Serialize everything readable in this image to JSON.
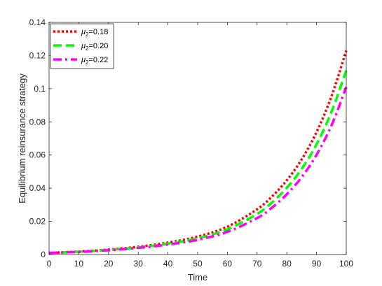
{
  "chart_data": {
    "type": "line",
    "title": "",
    "xlabel": "Time",
    "ylabel": "Equilibrium reinsurance strategy",
    "xlim": [
      0,
      100
    ],
    "ylim": [
      0,
      0.14
    ],
    "xticks": [
      "0",
      "10",
      "20",
      "30",
      "40",
      "50",
      "60",
      "70",
      "80",
      "90",
      "100"
    ],
    "yticks": [
      "0",
      "0.02",
      "0.04",
      "0.06",
      "0.08",
      "0.1",
      "0.12",
      "0.14"
    ],
    "grid": false,
    "legend_position": "top-left",
    "x": [
      0,
      10,
      20,
      30,
      40,
      50,
      60,
      70,
      75,
      80,
      85,
      90,
      95,
      100
    ],
    "series": [
      {
        "name_symbol": "μ",
        "name_sub": "2",
        "name_value": "=0.18",
        "color": "#ff0000",
        "style": "dotted",
        "values": [
          0.001,
          0.0018,
          0.003,
          0.0047,
          0.0072,
          0.0108,
          0.0168,
          0.0273,
          0.035,
          0.0448,
          0.0574,
          0.0738,
          0.0953,
          0.123
        ]
      },
      {
        "name_symbol": "μ",
        "name_sub": "2",
        "name_value": "=0.20",
        "color": "#00ff00",
        "style": "dashed",
        "values": [
          0.001,
          0.0017,
          0.0028,
          0.0043,
          0.0066,
          0.0098,
          0.0152,
          0.0245,
          0.0314,
          0.0403,
          0.0517,
          0.0665,
          0.086,
          0.111
        ]
      },
      {
        "name_symbol": "μ",
        "name_sub": "2",
        "name_value": "=0.22",
        "color": "#ff00ff",
        "style": "dashdot",
        "values": [
          0.001,
          0.0016,
          0.0026,
          0.004,
          0.006,
          0.0089,
          0.0137,
          0.022,
          0.0283,
          0.0364,
          0.0467,
          0.0602,
          0.0778,
          0.101
        ]
      }
    ]
  }
}
